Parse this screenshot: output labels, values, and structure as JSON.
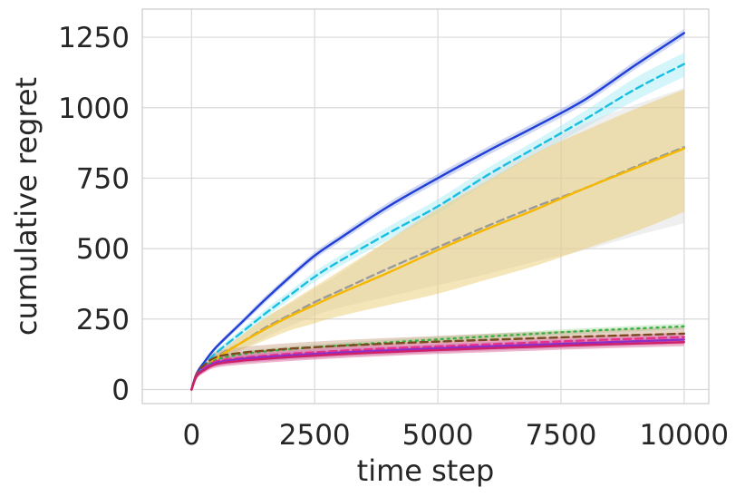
{
  "chart_data": {
    "type": "line",
    "title": "",
    "xlabel": "time step",
    "ylabel": "cumulative regret",
    "xlim": [
      -1000,
      10500
    ],
    "ylim": [
      -50,
      1350
    ],
    "x_ticks": [
      0,
      2500,
      5000,
      7500,
      10000
    ],
    "y_ticks": [
      0,
      250,
      500,
      750,
      1000,
      1250
    ],
    "grid": true,
    "legend": "none",
    "x": [
      0,
      100,
      250,
      500,
      1000,
      1500,
      2000,
      2500,
      3000,
      4000,
      5000,
      6000,
      7000,
      8000,
      9000,
      10000
    ],
    "series": [
      {
        "color": "#1f3fd6",
        "band_color": "#9aa8e8",
        "dash": "solid",
        "values": [
          0,
          55,
          95,
          150,
          235,
          320,
          400,
          475,
          535,
          650,
          750,
          845,
          935,
          1030,
          1150,
          1265
        ],
        "band_lo": [
          0,
          50,
          88,
          142,
          225,
          308,
          388,
          462,
          522,
          636,
          735,
          830,
          920,
          1015,
          1135,
          1250
        ],
        "band_hi": [
          0,
          60,
          102,
          158,
          245,
          332,
          412,
          488,
          548,
          664,
          765,
          860,
          950,
          1045,
          1165,
          1280
        ]
      },
      {
        "color": "#17bfe0",
        "band_color": "#9fe8f5",
        "dash": "dashed",
        "values": [
          0,
          50,
          85,
          130,
          200,
          270,
          335,
          400,
          455,
          555,
          650,
          760,
          860,
          960,
          1065,
          1155
        ],
        "band_lo": [
          0,
          45,
          78,
          120,
          188,
          255,
          320,
          382,
          436,
          532,
          625,
          735,
          835,
          930,
          1025,
          1110
        ],
        "band_hi": [
          0,
          55,
          92,
          140,
          212,
          285,
          350,
          418,
          474,
          578,
          675,
          785,
          885,
          990,
          1105,
          1195
        ]
      },
      {
        "color": "#9a9a9a",
        "band_color": "#dcdcdc",
        "dash": "dashed",
        "values": [
          0,
          45,
          75,
          115,
          165,
          220,
          265,
          310,
          350,
          430,
          505,
          580,
          650,
          715,
          790,
          860
        ],
        "band_lo": [
          0,
          38,
          65,
          100,
          140,
          185,
          225,
          262,
          290,
          330,
          370,
          410,
          455,
          495,
          545,
          590
        ],
        "band_hi": [
          0,
          52,
          85,
          130,
          190,
          255,
          305,
          358,
          410,
          530,
          650,
          760,
          860,
          945,
          1010,
          1070
        ]
      },
      {
        "color": "#f5b800",
        "band_color": "#e8c866",
        "dash": "solid",
        "values": [
          0,
          45,
          72,
          110,
          165,
          215,
          260,
          300,
          340,
          415,
          495,
          570,
          640,
          715,
          785,
          855
        ],
        "band_lo": [
          0,
          40,
          65,
          100,
          140,
          175,
          210,
          235,
          260,
          300,
          340,
          390,
          440,
          500,
          560,
          630
        ],
        "band_hi": [
          0,
          50,
          80,
          122,
          190,
          255,
          310,
          365,
          420,
          530,
          640,
          740,
          840,
          920,
          995,
          1065
        ]
      },
      {
        "color": "#3cb043",
        "band_color": "#a8dca8",
        "dash": "dotted",
        "values": [
          0,
          50,
          75,
          105,
          125,
          135,
          143,
          150,
          156,
          167,
          178,
          188,
          198,
          208,
          216,
          224
        ],
        "band_lo": [
          0,
          45,
          68,
          96,
          115,
          125,
          133,
          140,
          146,
          157,
          168,
          178,
          188,
          198,
          206,
          214
        ],
        "band_hi": [
          0,
          55,
          82,
          114,
          135,
          145,
          153,
          160,
          166,
          177,
          188,
          198,
          208,
          218,
          226,
          234
        ]
      },
      {
        "color": "#7a4a20",
        "band_color": "#c8a080",
        "dash": "dashed",
        "values": [
          0,
          55,
          85,
          115,
          130,
          138,
          145,
          150,
          155,
          163,
          170,
          176,
          182,
          188,
          193,
          198
        ],
        "band_lo": [
          0,
          45,
          70,
          95,
          112,
          120,
          126,
          132,
          136,
          144,
          150,
          156,
          162,
          168,
          173,
          178
        ],
        "band_hi": [
          0,
          65,
          100,
          135,
          150,
          158,
          165,
          170,
          175,
          183,
          190,
          198,
          204,
          210,
          216,
          222
        ]
      },
      {
        "color": "#e8308a",
        "band_color": "#e86aa8",
        "dash": "dashed",
        "values": [
          0,
          50,
          75,
          100,
          112,
          120,
          127,
          132,
          137,
          146,
          153,
          160,
          167,
          174,
          180,
          186
        ],
        "band_lo": [
          0,
          42,
          64,
          86,
          97,
          104,
          111,
          116,
          121,
          130,
          137,
          144,
          151,
          158,
          164,
          170
        ],
        "band_hi": [
          0,
          58,
          86,
          114,
          127,
          136,
          143,
          148,
          153,
          162,
          169,
          176,
          183,
          190,
          196,
          202
        ]
      },
      {
        "color": "#8b2fc9",
        "band_color": "#c97ac0",
        "dash": "solid",
        "values": [
          0,
          48,
          72,
          95,
          108,
          115,
          121,
          126,
          131,
          139,
          146,
          153,
          159,
          165,
          171,
          177
        ],
        "band_lo": [
          0,
          40,
          62,
          82,
          94,
          100,
          106,
          111,
          116,
          124,
          131,
          138,
          144,
          150,
          156,
          162
        ],
        "band_hi": [
          0,
          56,
          82,
          108,
          122,
          130,
          136,
          141,
          146,
          154,
          161,
          168,
          174,
          180,
          186,
          192
        ]
      },
      {
        "color": "#d0206a",
        "band_color": "#d86090",
        "dash": "solid",
        "values": [
          0,
          46,
          68,
          90,
          102,
          109,
          115,
          120,
          125,
          133,
          140,
          146,
          152,
          158,
          163,
          168
        ],
        "band_lo": [
          0,
          38,
          58,
          78,
          88,
          95,
          101,
          106,
          111,
          119,
          126,
          132,
          138,
          144,
          149,
          154
        ],
        "band_hi": [
          0,
          54,
          78,
          102,
          116,
          123,
          129,
          134,
          139,
          147,
          154,
          160,
          166,
          172,
          177,
          182
        ]
      }
    ]
  }
}
